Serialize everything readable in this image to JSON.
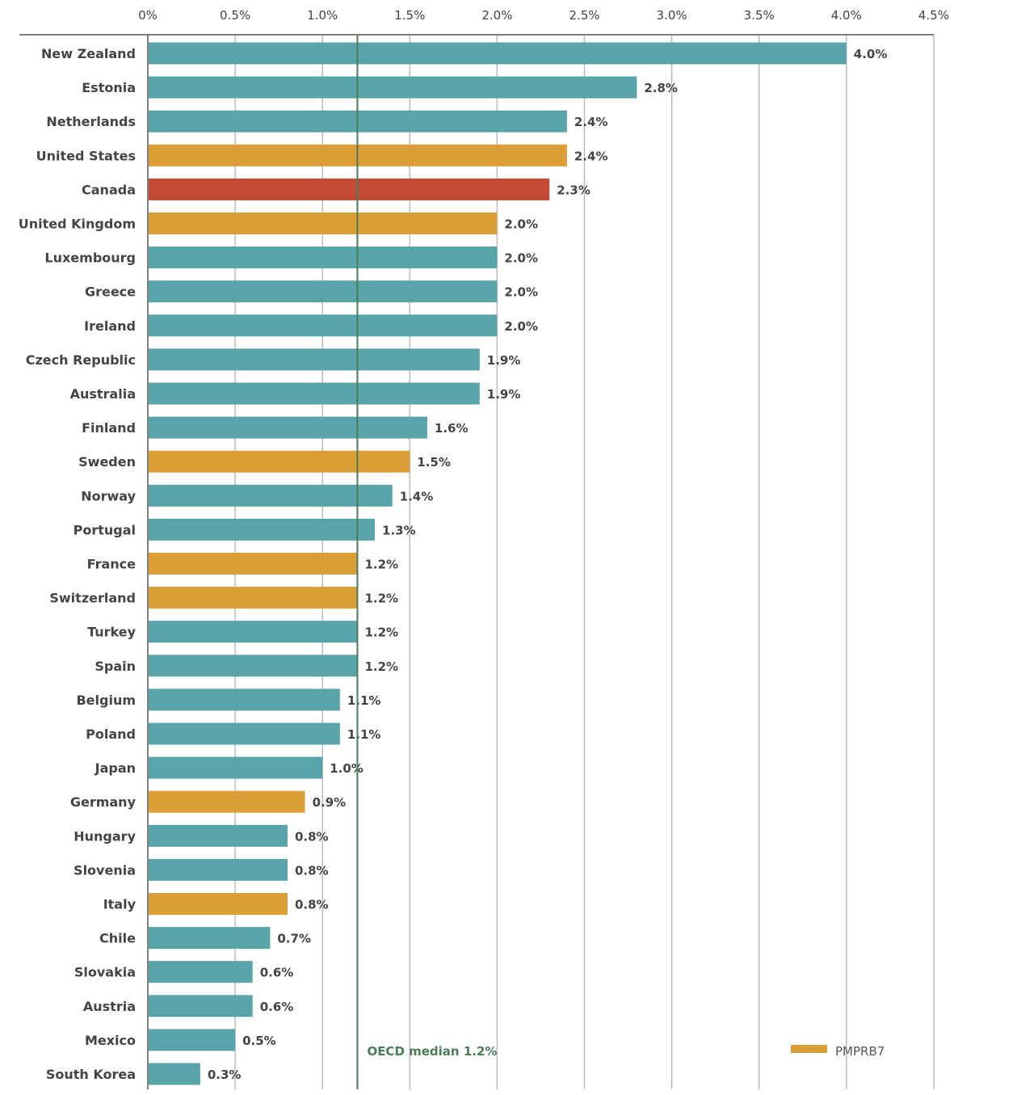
{
  "chart_data": {
    "type": "bar",
    "orientation": "horizontal",
    "title": "",
    "xlabel": "",
    "ylabel": "",
    "xlim": [
      0,
      4.5
    ],
    "x_ticks": [
      0,
      0.5,
      1.0,
      1.5,
      2.0,
      2.5,
      3.0,
      3.5,
      4.0,
      4.5
    ],
    "x_tick_labels": [
      "0%",
      "0.5%",
      "1.0%",
      "1.5%",
      "2.0%",
      "2.5%",
      "3.0%",
      "3.5%",
      "4.0%",
      "4.5%"
    ],
    "x_axis_position": "top",
    "grid": true,
    "categories": [
      "New Zealand",
      "Estonia",
      "Netherlands",
      "United States",
      "Canada",
      "United Kingdom",
      "Luxembourg",
      "Greece",
      "Ireland",
      "Czech Republic",
      "Australia",
      "Finland",
      "Sweden",
      "Norway",
      "Portugal",
      "France",
      "Switzerland",
      "Turkey",
      "Spain",
      "Belgium",
      "Poland",
      "Japan",
      "Germany",
      "Hungary",
      "Slovenia",
      "Italy",
      "Chile",
      "Slovakia",
      "Austria",
      "Mexico",
      "South Korea"
    ],
    "values": [
      4.0,
      2.8,
      2.4,
      2.4,
      2.3,
      2.0,
      2.0,
      2.0,
      2.0,
      1.9,
      1.9,
      1.6,
      1.5,
      1.4,
      1.3,
      1.2,
      1.2,
      1.2,
      1.2,
      1.1,
      1.1,
      1.0,
      0.9,
      0.8,
      0.8,
      0.8,
      0.7,
      0.6,
      0.6,
      0.5,
      0.3
    ],
    "value_labels": [
      "4.0%",
      "2.8%",
      "2.4%",
      "2.4%",
      "2.3%",
      "2.0%",
      "2.0%",
      "2.0%",
      "2.0%",
      "1.9%",
      "1.9%",
      "1.6%",
      "1.5%",
      "1.4%",
      "1.3%",
      "1.2%",
      "1.2%",
      "1.2%",
      "1.2%",
      "1.1%",
      "1.1%",
      "1.0%",
      "0.9%",
      "0.8%",
      "0.8%",
      "0.8%",
      "0.7%",
      "0.6%",
      "0.6%",
      "0.5%",
      "0.3%"
    ],
    "groups": [
      "other",
      "other",
      "other",
      "pmprb7",
      "canada",
      "pmprb7",
      "other",
      "other",
      "other",
      "other",
      "other",
      "other",
      "pmprb7",
      "other",
      "other",
      "pmprb7",
      "pmprb7",
      "other",
      "other",
      "other",
      "other",
      "other",
      "pmprb7",
      "other",
      "other",
      "pmprb7",
      "other",
      "other",
      "other",
      "other",
      "other"
    ],
    "colors": {
      "other": "#58a4a8",
      "pmprb7": "#dc9f38",
      "canada": "#c44b33",
      "median_line": "#4a7c59",
      "grid": "#bbbbbb",
      "axis": "#555555"
    },
    "reference_line": {
      "value": 1.2,
      "label": "OECD median 1.2%"
    },
    "legend": {
      "position": "bottom-right",
      "entries": [
        {
          "label": "PMPRB7",
          "group": "pmprb7"
        }
      ]
    }
  }
}
